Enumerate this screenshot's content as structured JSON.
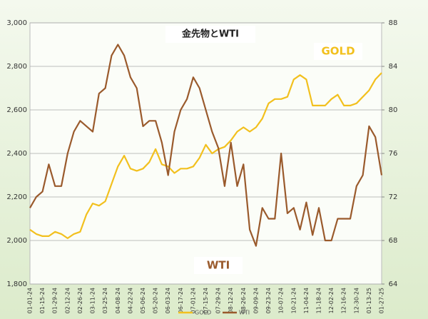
{
  "chart_data": {
    "type": "line",
    "title": "金先物とWTI",
    "annotations": [
      {
        "text": "GOLD",
        "series": 0
      },
      {
        "text": "WTI",
        "series": 1
      }
    ],
    "categories": [
      "01-01-24",
      null,
      "01-15-24",
      null,
      "01-29-24",
      null,
      "02-12-24",
      null,
      "02-26-24",
      null,
      "03-11-24",
      null,
      "03-25-24",
      null,
      "04-08-24",
      null,
      "04-22-24",
      null,
      "05-06-24",
      null,
      "05-20-24",
      null,
      "06-03-24",
      null,
      "06-17-24",
      null,
      "07-01-24",
      null,
      "07-15-24",
      null,
      "07-29-24",
      null,
      "08-12-24",
      null,
      "08-26-24",
      null,
      "09-09-24",
      null,
      "09-23-24",
      null,
      "10-07-24",
      null,
      "10-21-24",
      null,
      "11-04-24",
      null,
      "11-18-24",
      null,
      "12-02-24",
      null,
      "12-16-24",
      null,
      "12-30-24",
      null,
      "01-13-25",
      null,
      "01-27-25"
    ],
    "series": [
      {
        "name": "GOLD",
        "color": "#f2c01e",
        "axis": "y",
        "values": [
          2050,
          2030,
          2020,
          2020,
          2040,
          2030,
          2010,
          2030,
          2040,
          2120,
          2170,
          2160,
          2180,
          2260,
          2340,
          2390,
          2330,
          2320,
          2330,
          2360,
          2420,
          2350,
          2340,
          2310,
          2330,
          2330,
          2340,
          2380,
          2440,
          2400,
          2420,
          2430,
          2460,
          2500,
          2520,
          2500,
          2520,
          2560,
          2630,
          2650,
          2650,
          2660,
          2740,
          2760,
          2740,
          2620,
          2620,
          2620,
          2650,
          2670,
          2620,
          2620,
          2630,
          2660,
          2690,
          2740,
          2770
        ]
      },
      {
        "name": "WTI",
        "color": "#9a5a2c",
        "axis": "y2",
        "values": [
          71,
          72,
          72.5,
          75,
          73,
          73,
          76,
          78,
          79,
          78.5,
          78,
          81.5,
          82,
          85,
          86,
          85,
          83,
          82,
          78.5,
          79,
          79,
          77,
          74,
          78,
          80,
          81,
          83,
          82,
          80,
          78,
          76.5,
          73,
          77,
          73,
          75,
          69,
          67.5,
          71,
          70,
          70,
          76,
          70.5,
          71,
          69,
          71.5,
          68.5,
          71,
          68,
          68,
          70,
          70,
          70,
          73,
          74,
          78.5,
          77.5,
          74
        ]
      }
    ],
    "ylim": [
      1800,
      3000
    ],
    "yticks": [
      {
        "value": 1800,
        "label": "1,800"
      },
      {
        "value": 2000,
        "label": "2,000"
      },
      {
        "value": 2200,
        "label": "2,200"
      },
      {
        "value": 2400,
        "label": "2,400"
      },
      {
        "value": 2600,
        "label": "2,600"
      },
      {
        "value": 2800,
        "label": "2,800"
      },
      {
        "value": 3000,
        "label": "3,000"
      }
    ],
    "y2lim": [
      64,
      88
    ],
    "y2ticks": [
      64,
      68,
      72,
      76,
      80,
      84,
      88
    ],
    "grid": true,
    "legend": "bottom"
  }
}
